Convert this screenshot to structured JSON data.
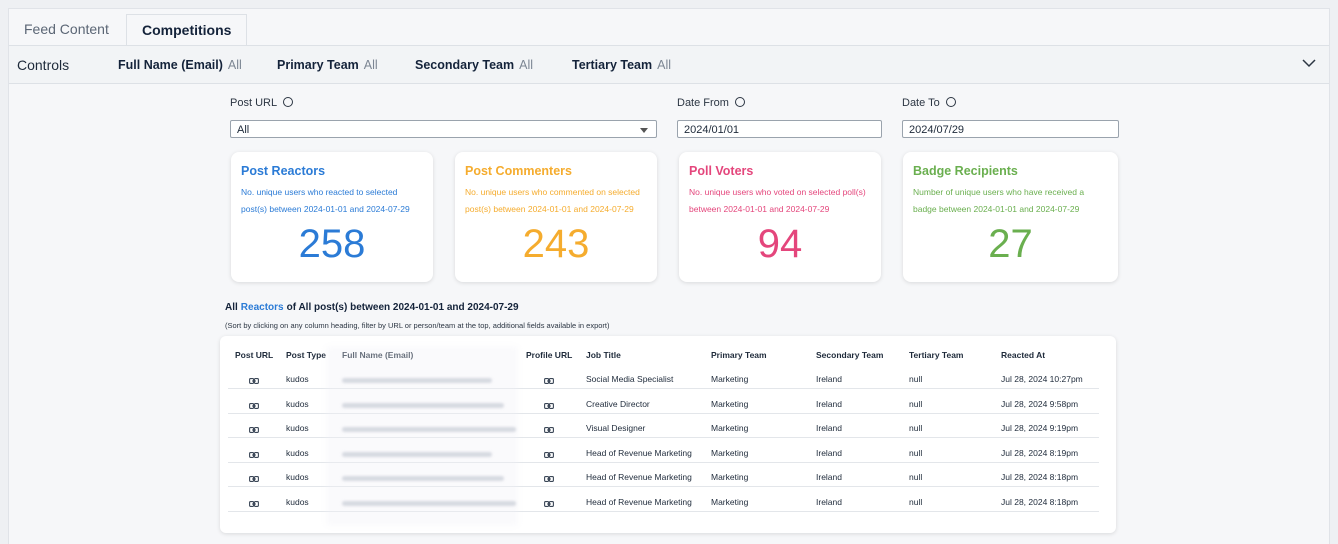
{
  "tabs": [
    "Feed Content",
    "Competitions"
  ],
  "controls": {
    "label": "Controls",
    "filters": [
      {
        "name": "Full Name (Email)",
        "value": "All"
      },
      {
        "name": "Primary Team",
        "value": "All"
      },
      {
        "name": "Secondary Team",
        "value": "All"
      },
      {
        "name": "Tertiary Team",
        "value": "All"
      }
    ]
  },
  "fields": [
    {
      "label": "Post URL",
      "value": "All"
    },
    {
      "label": "Date From",
      "value": "2024/01/01"
    },
    {
      "label": "Date To",
      "value": "2024/07/29"
    }
  ],
  "cards": [
    {
      "title": "Post Reactors",
      "description": "No. unique users who reacted to selected post(s) between 2024-01-01 and 2024-07-29",
      "value": 258
    },
    {
      "title": "Post Commenters",
      "description": "No. unique users who commented on selected post(s) between 2024-01-01 and 2024-07-29",
      "value": 243
    },
    {
      "title": "Poll Voters",
      "description": "No. unique users who voted on selected poll(s) between 2024-01-01 and 2024-07-29",
      "value": 94
    },
    {
      "title": "Badge Recipients",
      "description": "Number of unique users who have received a badge between 2024-01-01 and 2024-07-29",
      "value": 27
    }
  ],
  "section": {
    "prefix": "All",
    "highlight": "Reactors",
    "suffix": "of All post(s) between 2024-01-01 and 2024-07-29",
    "note": "(Sort by clicking on any column heading, filter by URL or person/team at the top, additional fields available in export)"
  },
  "table": {
    "columns": [
      "Post URL",
      "Post Type",
      "Full Name (Email)",
      "Profile URL",
      "Job Title",
      "Primary Team",
      "Secondary Team",
      "Tertiary Team",
      "Reacted At"
    ],
    "rows": [
      [
        "kudos",
        "Social Media Specialist",
        "Marketing",
        "Ireland",
        "null",
        "Jul 28, 2024 10:27pm"
      ],
      [
        "kudos",
        "Creative Director",
        "Marketing",
        "Ireland",
        "null",
        "Jul 28, 2024 9:58pm"
      ],
      [
        "kudos",
        "Visual Designer",
        "Marketing",
        "Ireland",
        "null",
        "Jul 28, 2024 9:19pm"
      ],
      [
        "kudos",
        "Head of Revenue Marketing",
        "Marketing",
        "Ireland",
        "null",
        "Jul 28, 2024 8:19pm"
      ],
      [
        "kudos",
        "Head of Revenue Marketing",
        "Marketing",
        "Ireland",
        "null",
        "Jul 28, 2024 8:18pm"
      ],
      [
        "kudos",
        "Head of Revenue Marketing",
        "Marketing",
        "Ireland",
        "null",
        "Jul 28, 2024 8:18pm"
      ]
    ]
  }
}
